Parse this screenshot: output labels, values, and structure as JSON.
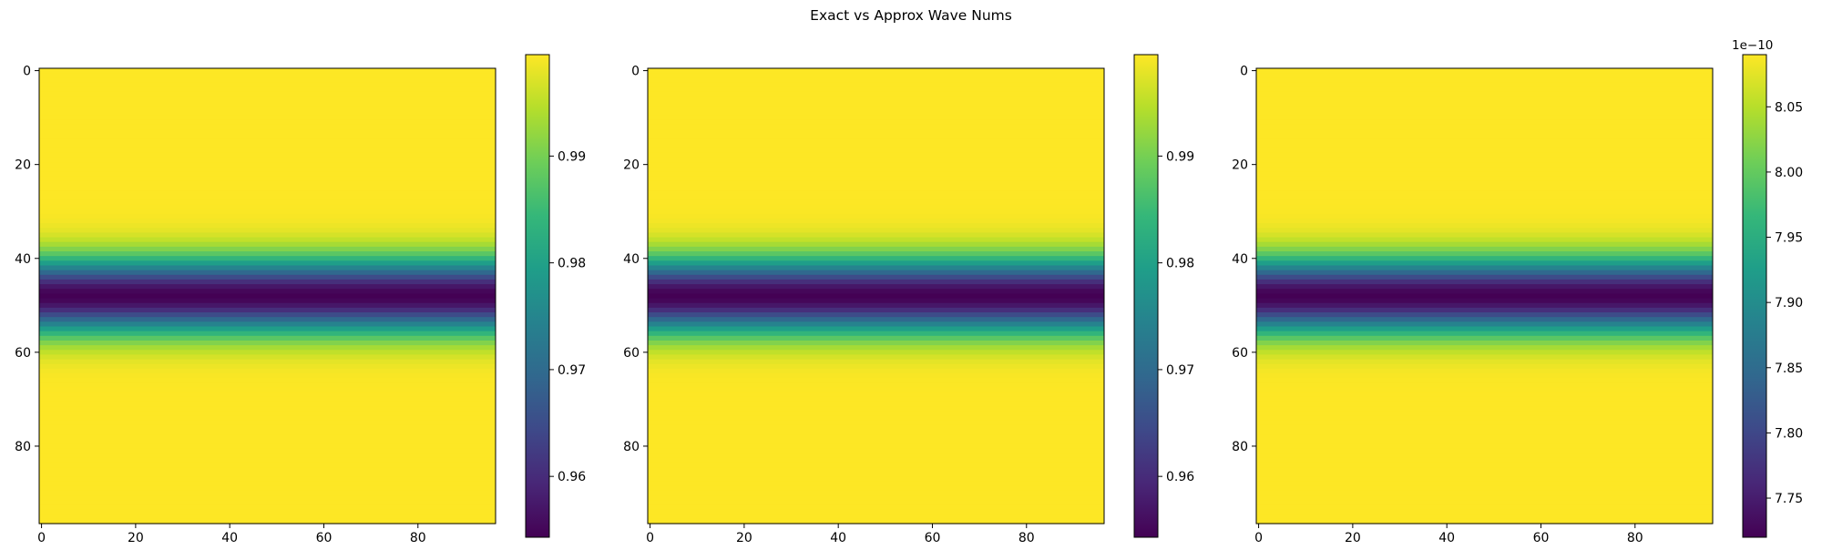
{
  "figure_title": "Exact vs Approx Wave Nums",
  "colormap": {
    "name": "viridis",
    "stops": [
      "#440154",
      "#482777",
      "#3e4989",
      "#31688e",
      "#26828e",
      "#1f9e89",
      "#35b779",
      "#6ece58",
      "#b5de2b",
      "#fde725"
    ]
  },
  "chart_data": [
    {
      "type": "heatmap",
      "title": "",
      "grid_shape": [
        97,
        97
      ],
      "xlim": [
        0,
        97
      ],
      "ylim": [
        97,
        0
      ],
      "x_ticks": [
        0,
        20,
        40,
        60,
        80
      ],
      "y_ticks": [
        0,
        20,
        40,
        60,
        80
      ],
      "profile": {
        "description_axis": "rows",
        "center_row": 48.5,
        "width_rows": 5.5,
        "min": 0.9543,
        "max": 0.9995
      },
      "colorbar": {
        "vmin": 0.9543,
        "vmax": 0.9995,
        "ticks": [
          "0.96",
          "0.97",
          "0.98",
          "0.99"
        ],
        "tick_values": [
          0.96,
          0.97,
          0.98,
          0.99
        ],
        "offset_label": ""
      }
    },
    {
      "type": "heatmap",
      "title": "",
      "grid_shape": [
        97,
        97
      ],
      "xlim": [
        0,
        97
      ],
      "ylim": [
        97,
        0
      ],
      "x_ticks": [
        0,
        20,
        40,
        60,
        80
      ],
      "y_ticks": [
        0,
        20,
        40,
        60,
        80
      ],
      "profile": {
        "description_axis": "rows",
        "center_row": 48.5,
        "width_rows": 5.5,
        "min": 0.9543,
        "max": 0.9995
      },
      "colorbar": {
        "vmin": 0.9543,
        "vmax": 0.9995,
        "ticks": [
          "0.96",
          "0.97",
          "0.98",
          "0.99"
        ],
        "tick_values": [
          0.96,
          0.97,
          0.98,
          0.99
        ],
        "offset_label": ""
      }
    },
    {
      "type": "heatmap",
      "title": "",
      "grid_shape": [
        97,
        97
      ],
      "xlim": [
        0,
        97
      ],
      "ylim": [
        97,
        0
      ],
      "x_ticks": [
        0,
        20,
        40,
        60,
        80
      ],
      "y_ticks": [
        0,
        20,
        40,
        60,
        80
      ],
      "profile": {
        "description_axis": "rows",
        "center_row": 48.5,
        "width_rows": 5.5,
        "min": 7.72,
        "max": 8.09
      },
      "colorbar": {
        "vmin": 7.72,
        "vmax": 8.09,
        "ticks": [
          "7.75",
          "7.80",
          "7.85",
          "7.90",
          "7.95",
          "8.00",
          "8.05"
        ],
        "tick_values": [
          7.75,
          7.8,
          7.85,
          7.9,
          7.95,
          8.0,
          8.05
        ],
        "offset_label": "1e−10"
      }
    }
  ]
}
